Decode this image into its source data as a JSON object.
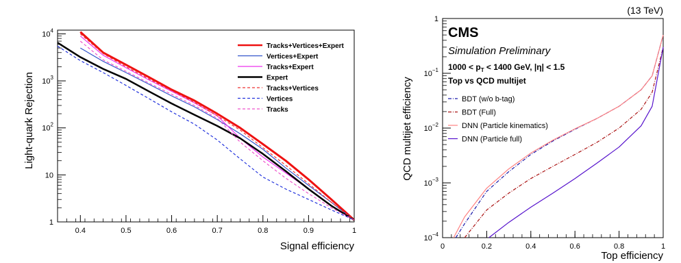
{
  "chart_data": [
    {
      "type": "line",
      "xlabel": "Signal efficiency",
      "ylabel": "Light-quark Rejection",
      "xlim": [
        0.35,
        1.0
      ],
      "ylim": [
        1,
        12000
      ],
      "yscale": "log",
      "grid": false,
      "legend_position": "top-right",
      "x_ticks": [
        {
          "value": 0.4,
          "label": "0.4"
        },
        {
          "value": 0.5,
          "label": "0.5"
        },
        {
          "value": 0.6,
          "label": "0.6"
        },
        {
          "value": 0.7,
          "label": "0.7"
        },
        {
          "value": 0.8,
          "label": "0.8"
        },
        {
          "value": 0.9,
          "label": "0.9"
        },
        {
          "value": 1.0,
          "label": "1"
        }
      ],
      "y_ticks": [
        {
          "value": 1,
          "base": "1",
          "exp": ""
        },
        {
          "value": 10,
          "base": "10",
          "exp": ""
        },
        {
          "value": 100,
          "base": "10",
          "exp": "2"
        },
        {
          "value": 1000,
          "base": "10",
          "exp": "3"
        },
        {
          "value": 10000,
          "base": "10",
          "exp": "4"
        }
      ],
      "series": [
        {
          "name": "Tracks+Vertices+Expert",
          "color": "#ee1111",
          "dash": "solid",
          "width": 3,
          "x": [
            0.4,
            0.45,
            0.5,
            0.55,
            0.6,
            0.65,
            0.7,
            0.75,
            0.8,
            0.85,
            0.9,
            0.95,
            1.0
          ],
          "y": [
            11000,
            4000,
            2200,
            1200,
            650,
            380,
            200,
            100,
            45,
            20,
            8,
            3,
            1.1
          ]
        },
        {
          "name": "Vertices+Expert",
          "color": "#3355cc",
          "dash": "solid",
          "width": 1.2,
          "x": [
            0.4,
            0.45,
            0.5,
            0.55,
            0.6,
            0.65,
            0.7,
            0.75,
            0.8,
            0.85,
            0.9,
            0.95,
            1.0
          ],
          "y": [
            5000,
            2600,
            1500,
            850,
            480,
            280,
            150,
            75,
            35,
            14,
            6,
            2.6,
            1.1
          ]
        },
        {
          "name": "Tracks+Expert",
          "color": "#ee33ee",
          "dash": "solid",
          "width": 1.2,
          "x": [
            0.4,
            0.45,
            0.5,
            0.55,
            0.6,
            0.65,
            0.7,
            0.75,
            0.8,
            0.85,
            0.9,
            0.95,
            1.0
          ],
          "y": [
            9000,
            3500,
            1900,
            1050,
            600,
            340,
            180,
            60,
            24,
            11,
            5,
            2.2,
            1.1
          ]
        },
        {
          "name": "Expert",
          "color": "#000000",
          "dash": "solid",
          "width": 2.5,
          "x": [
            0.35,
            0.4,
            0.45,
            0.5,
            0.55,
            0.6,
            0.65,
            0.7,
            0.75,
            0.8,
            0.85,
            0.9,
            0.95,
            1.0
          ],
          "y": [
            6500,
            3200,
            1800,
            1100,
            600,
            330,
            190,
            110,
            60,
            28,
            12,
            5,
            2.2,
            1.1
          ]
        },
        {
          "name": "Tracks+Vertices",
          "color": "#ee3333",
          "dash": "4,3",
          "width": 1.2,
          "x": [
            0.4,
            0.45,
            0.5,
            0.55,
            0.6,
            0.65,
            0.7,
            0.75,
            0.8,
            0.85,
            0.9,
            0.95,
            1.0
          ],
          "y": [
            10000,
            3800,
            2000,
            1100,
            620,
            350,
            180,
            90,
            38,
            16,
            6.5,
            2.6,
            1.1
          ]
        },
        {
          "name": "Vertices",
          "color": "#2233dd",
          "dash": "4,3",
          "width": 1.2,
          "x": [
            0.35,
            0.4,
            0.45,
            0.5,
            0.55,
            0.6,
            0.65,
            0.7,
            0.75,
            0.8,
            0.85,
            0.9,
            0.95,
            1.0
          ],
          "y": [
            5500,
            2700,
            1500,
            800,
            420,
            220,
            120,
            55,
            22,
            9,
            5,
            3,
            1.8,
            1.1
          ]
        },
        {
          "name": "Tracks",
          "color": "#ee55cc",
          "dash": "4,3",
          "width": 1.2,
          "x": [
            0.4,
            0.45,
            0.5,
            0.55,
            0.6,
            0.65,
            0.7,
            0.75,
            0.8,
            0.85,
            0.9,
            0.95,
            1.0
          ],
          "y": [
            7000,
            2800,
            1600,
            900,
            520,
            300,
            160,
            50,
            20,
            8.5,
            4,
            2,
            1.1
          ]
        }
      ]
    },
    {
      "type": "line",
      "xlabel": "Top efficiency",
      "ylabel": "QCD multijet efficiency",
      "xlim": [
        0,
        1
      ],
      "ylim": [
        0.0001,
        1
      ],
      "yscale": "log",
      "grid": false,
      "legend_position": "middle-left",
      "energy_label": "(13 TeV)",
      "experiment": "CMS",
      "experiment_sub": "Simulation Preliminary",
      "selection_line1": "1000 < p",
      "selection_sub": "T",
      "selection_line1b": " < 1400 GeV, |η| < 1.5",
      "selection_line2": "Top vs QCD multijet",
      "x_ticks": [
        {
          "value": 0,
          "label": "0"
        },
        {
          "value": 0.2,
          "label": "0.2"
        },
        {
          "value": 0.4,
          "label": "0.4"
        },
        {
          "value": 0.6,
          "label": "0.6"
        },
        {
          "value": 0.8,
          "label": "0.8"
        },
        {
          "value": 1,
          "label": "1"
        }
      ],
      "y_ticks": [
        {
          "value": 0.0001,
          "base": "10",
          "exp": "−4"
        },
        {
          "value": 0.001,
          "base": "10",
          "exp": "−3"
        },
        {
          "value": 0.01,
          "base": "10",
          "exp": "−2"
        },
        {
          "value": 0.1,
          "base": "10",
          "exp": "−1"
        },
        {
          "value": 1,
          "base": "1",
          "exp": ""
        }
      ],
      "series": [
        {
          "name": "BDT (w/o b-tag)",
          "color": "#1a1aaa",
          "dash": "5,2,1,2",
          "width": 1.2,
          "x": [
            0.06,
            0.1,
            0.2,
            0.3,
            0.4,
            0.5,
            0.6,
            0.7,
            0.8,
            0.9,
            0.95,
            1.0
          ],
          "y": [
            0.0001,
            0.00018,
            0.0007,
            0.0016,
            0.0033,
            0.0058,
            0.0095,
            0.015,
            0.025,
            0.05,
            0.09,
            0.5
          ]
        },
        {
          "name": "BDT (Full)",
          "color": "#aa1111",
          "dash": "5,2,1,2",
          "width": 1.2,
          "x": [
            0.1,
            0.2,
            0.3,
            0.4,
            0.5,
            0.6,
            0.7,
            0.8,
            0.9,
            0.95,
            1.0
          ],
          "y": [
            0.0001,
            0.00032,
            0.00065,
            0.0012,
            0.002,
            0.0033,
            0.0055,
            0.01,
            0.022,
            0.045,
            0.3
          ]
        },
        {
          "name": "DNN (Particle kinematics)",
          "color": "#ff8080",
          "dash": "solid",
          "width": 1.2,
          "x": [
            0.05,
            0.1,
            0.2,
            0.3,
            0.4,
            0.5,
            0.6,
            0.7,
            0.8,
            0.9,
            0.95,
            1.0
          ],
          "y": [
            0.0001,
            0.00024,
            0.0008,
            0.0018,
            0.0035,
            0.006,
            0.0097,
            0.015,
            0.025,
            0.05,
            0.09,
            0.5
          ]
        },
        {
          "name": "DNN (Particle full)",
          "color": "#5511cc",
          "dash": "solid",
          "width": 1.2,
          "x": [
            0.21,
            0.3,
            0.4,
            0.5,
            0.6,
            0.7,
            0.8,
            0.9,
            0.95,
            1.0
          ],
          "y": [
            0.0001,
            0.00019,
            0.00036,
            0.00065,
            0.0012,
            0.0023,
            0.0045,
            0.011,
            0.025,
            0.3
          ]
        }
      ]
    }
  ]
}
